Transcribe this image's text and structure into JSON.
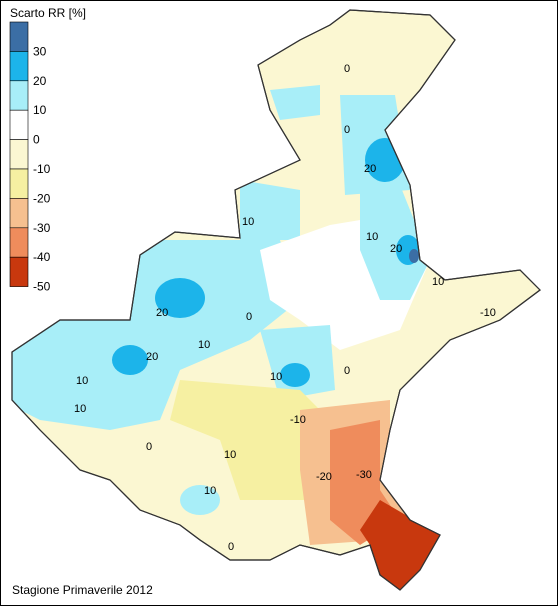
{
  "legend": {
    "title": "Scarto RR [%]",
    "items": [
      {
        "label": "30",
        "color": "#3b6ea5"
      },
      {
        "label": "20",
        "color": "#1cb4ea"
      },
      {
        "label": "10",
        "color": "#a8eef8"
      },
      {
        "label": "0",
        "color": "#ffffff"
      },
      {
        "label": "-10",
        "color": "#fbf7d2"
      },
      {
        "label": "-20",
        "color": "#f6f0a2"
      },
      {
        "label": "-30",
        "color": "#f6c090"
      },
      {
        "label": "-40",
        "color": "#ef8c5c"
      },
      {
        "label": "-50",
        "color": "#c8380e"
      }
    ]
  },
  "map_labels": [
    "0",
    "0",
    "20",
    "10",
    "10",
    "20",
    "10",
    "-10",
    "20",
    "0",
    "10",
    "20",
    "10",
    "0",
    "10",
    "10",
    "0",
    "-10",
    "10",
    "-20",
    "-30",
    "10",
    "0"
  ],
  "footer": "Stagione Primaverile 2012"
}
